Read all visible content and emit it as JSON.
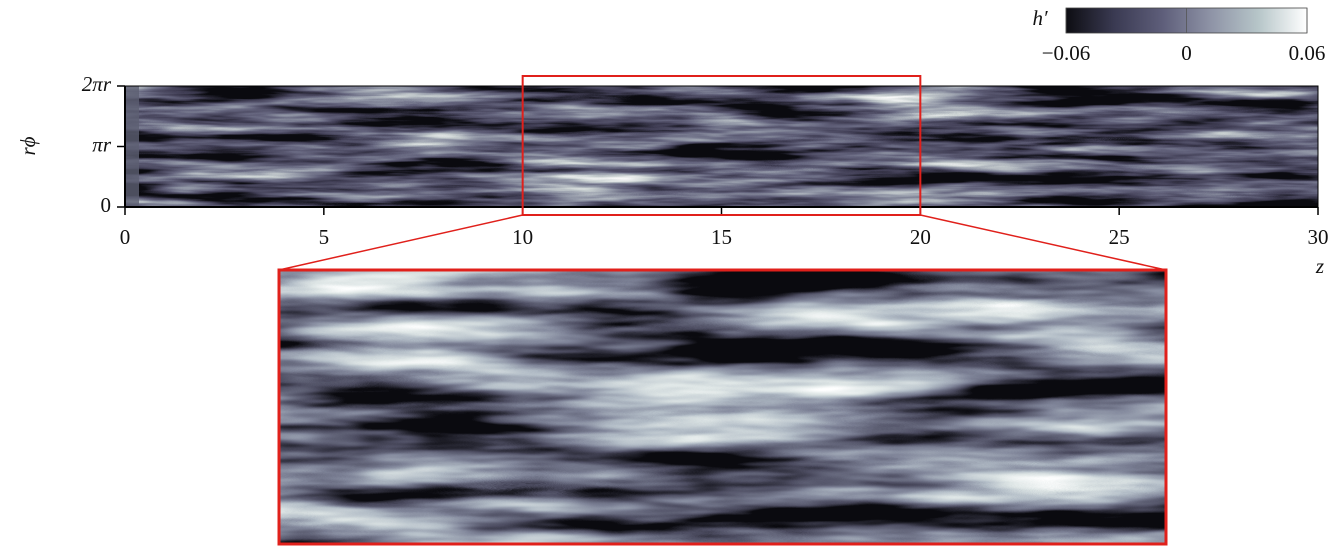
{
  "chart_data": {
    "type": "field",
    "xlabel": "z",
    "ylabel": "rϕ",
    "xlim": [
      0,
      30
    ],
    "xticks": [
      0,
      5,
      10,
      15,
      20,
      25,
      30
    ],
    "ylim": [
      0,
      6.2832
    ],
    "yticks": [
      0,
      {
        "value": 3.1416,
        "label": "πr"
      },
      {
        "value": 6.2832,
        "label": "2πr"
      }
    ],
    "inset_xlim": [
      10,
      20
    ],
    "inset_color": "#e0201b",
    "colorbar": {
      "label": "h′",
      "clim": [
        -0.06,
        0.06
      ],
      "ticks": [
        {
          "value": -0.06,
          "label": "−0.06"
        },
        0,
        0.06
      ],
      "colors": [
        "#0d0d12",
        "#3a3a52",
        "#5e5e7a",
        "#8e93a6",
        "#b7c6c9",
        "#ffffff"
      ]
    }
  }
}
